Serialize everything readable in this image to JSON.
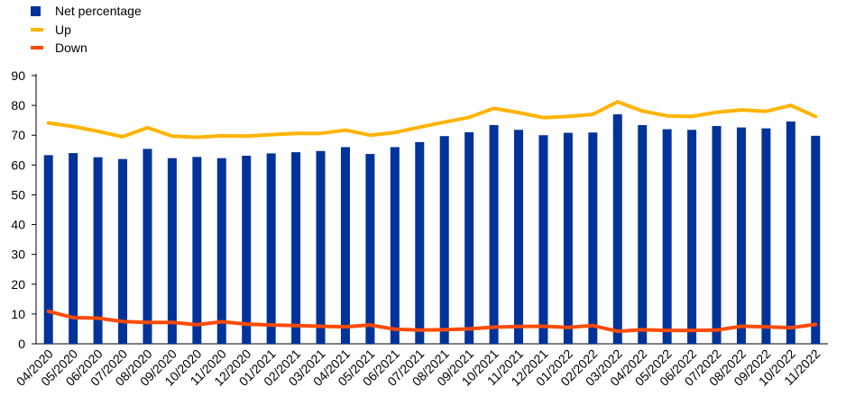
{
  "chart_data": {
    "type": "bar",
    "title": "",
    "xlabel": "",
    "ylabel": "",
    "ylim": [
      0,
      90
    ],
    "yticks": [
      0,
      10,
      20,
      30,
      40,
      50,
      60,
      70,
      80,
      90
    ],
    "grid": false,
    "legend_position": "top-left",
    "categories": [
      "04/2020",
      "05/2020",
      "06/2020",
      "07/2020",
      "08/2020",
      "09/2020",
      "10/2020",
      "11/2020",
      "12/2020",
      "01/2021",
      "02/2021",
      "03/2021",
      "04/2021",
      "05/2021",
      "06/2021",
      "07/2021",
      "08/2021",
      "09/2021",
      "10/2021",
      "11/2021",
      "12/2021",
      "01/2022",
      "02/2022",
      "03/2022",
      "04/2022",
      "05/2022",
      "06/2022",
      "07/2022",
      "08/2022",
      "09/2022",
      "10/2022",
      "11/2022"
    ],
    "series": [
      {
        "name": "Net percentage",
        "type": "bar",
        "color": "#003299",
        "values": [
          63.3,
          64.0,
          62.6,
          62.0,
          65.4,
          62.3,
          62.7,
          62.3,
          63.1,
          63.9,
          64.3,
          64.7,
          66.0,
          63.7,
          66.0,
          67.7,
          69.7,
          71.0,
          73.4,
          71.8,
          70.0,
          70.8,
          70.9,
          77.0,
          73.4,
          72.0,
          71.8,
          73.1,
          72.6,
          72.3,
          74.6,
          69.8
        ]
      },
      {
        "name": "Up",
        "type": "line",
        "color": "#FFB400",
        "values": [
          74.1,
          72.9,
          71.3,
          69.5,
          72.5,
          69.7,
          69.3,
          69.8,
          69.7,
          70.2,
          70.6,
          70.6,
          71.7,
          70.0,
          70.9,
          72.7,
          74.4,
          76.0,
          79.0,
          77.6,
          75.9,
          76.3,
          77.0,
          81.2,
          78.1,
          76.5,
          76.3,
          77.7,
          78.5,
          78.0,
          80.0,
          76.3
        ]
      },
      {
        "name": "Down",
        "type": "line",
        "color": "#FF4B00",
        "values": [
          10.9,
          8.8,
          8.6,
          7.5,
          7.2,
          7.2,
          6.4,
          7.4,
          6.6,
          6.3,
          6.1,
          5.9,
          5.7,
          6.3,
          4.9,
          4.6,
          4.7,
          5.0,
          5.6,
          5.8,
          5.9,
          5.5,
          6.1,
          4.2,
          4.7,
          4.5,
          4.5,
          4.6,
          5.9,
          5.7,
          5.4,
          6.5
        ]
      }
    ]
  }
}
